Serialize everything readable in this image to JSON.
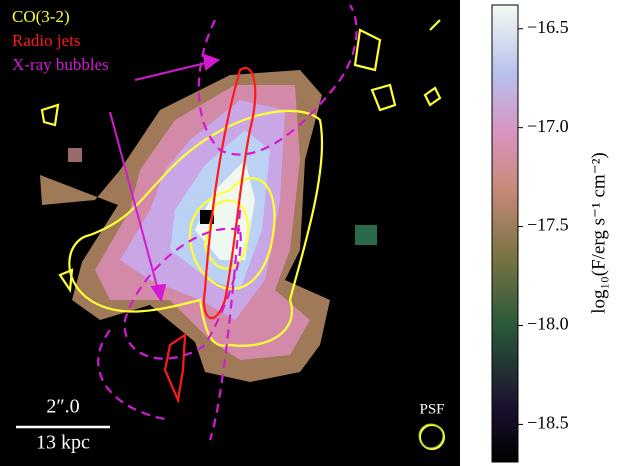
{
  "chart_data": {
    "type": "image",
    "legend": [
      {
        "name": "CO(3-2)",
        "color": "#ffff33"
      },
      {
        "name": "Radio jets",
        "color": "#ff1a1a"
      },
      {
        "name": "X-ray bubbles",
        "color": "#d21ad2"
      }
    ],
    "scalebar": {
      "angular": "2″.0",
      "physical": "13 kpc"
    },
    "psf_label": "PSF",
    "colorbar": {
      "label": "log₁₀(F/erg s⁻¹ cm⁻²)",
      "clim": [
        -18.69,
        -16.38
      ],
      "ticks": [
        {
          "value": -16.5,
          "label": "−16.5"
        },
        {
          "value": -17.0,
          "label": "−17.0"
        },
        {
          "value": -17.5,
          "label": "−17.5"
        },
        {
          "value": -18.0,
          "label": "−18.0"
        },
        {
          "value": -18.5,
          "label": "−18.5"
        }
      ]
    }
  }
}
